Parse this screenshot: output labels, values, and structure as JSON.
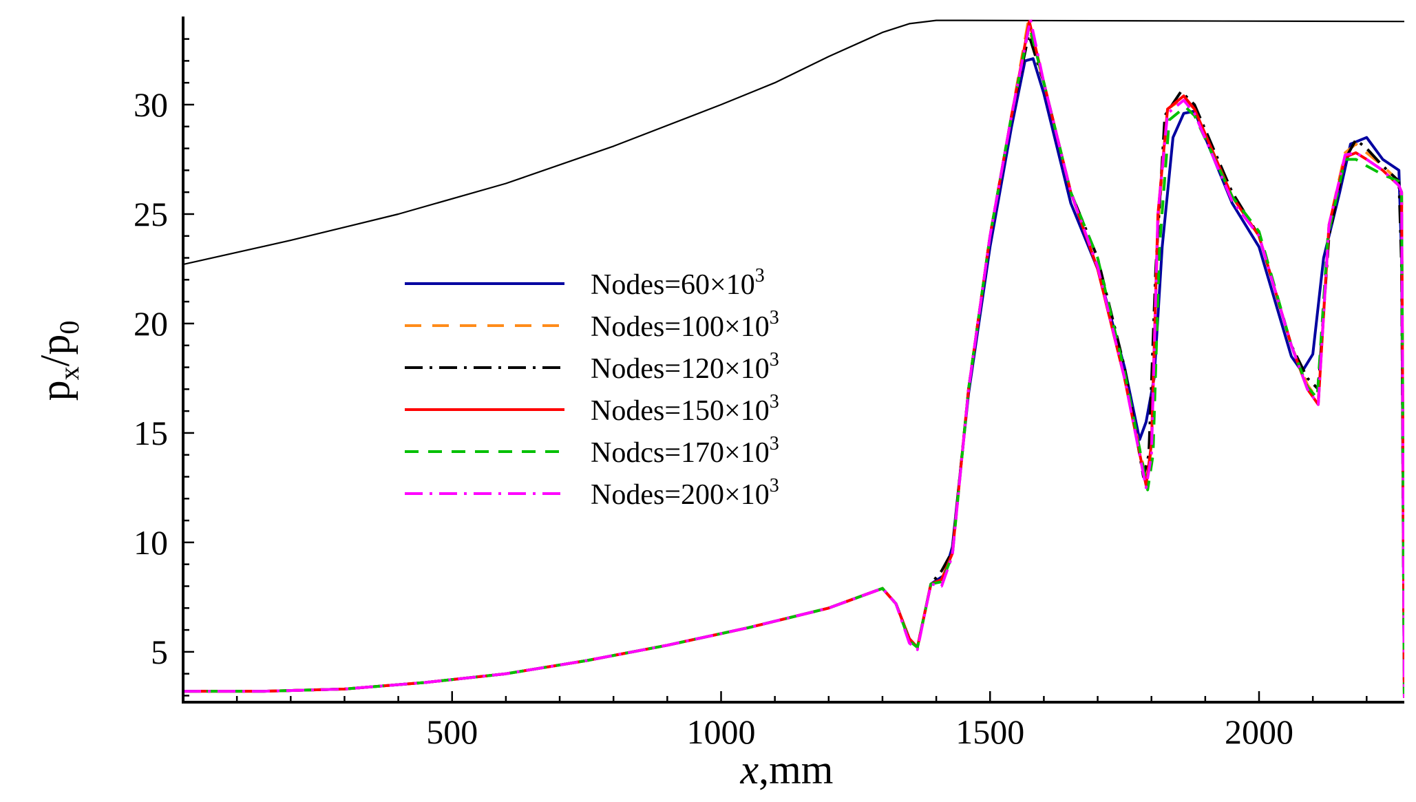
{
  "chart_data": {
    "type": "line",
    "title": "",
    "xlabel": {
      "italic": "x",
      "rest": ",mm"
    },
    "ylabel": {
      "base1": "p",
      "sub1": "x",
      "slash": "/",
      "base2": "p",
      "sub2": "0"
    },
    "xlim": [
      0,
      2270
    ],
    "ylim": [
      2.7,
      33.9
    ],
    "xticks": [
      500,
      1000,
      1500,
      2000
    ],
    "xtick_labels": [
      "500",
      "1000",
      "1500",
      "2000"
    ],
    "yticks": [
      5,
      10,
      15,
      20,
      25,
      30
    ],
    "ytick_labels": [
      "5",
      "10",
      "15",
      "20",
      "25",
      "30"
    ],
    "grid": false,
    "legend_position": "center-left",
    "profile": {
      "name": "contour",
      "color": "#000000",
      "x": [
        0,
        200,
        400,
        600,
        800,
        1000,
        1100,
        1200,
        1300,
        1350,
        1400,
        1420,
        2270
      ],
      "y": [
        22.7,
        23.8,
        25.0,
        26.4,
        28.1,
        30.0,
        31.0,
        32.2,
        33.3,
        33.7,
        33.85,
        33.85,
        33.8
      ]
    },
    "series": [
      {
        "legend": {
          "prefix": "Nodes=",
          "mant": "60",
          "base": "×10",
          "exp": "3"
        },
        "color": "#0000a0",
        "dash": "solid",
        "x": [
          0,
          150,
          300,
          450,
          600,
          750,
          900,
          1050,
          1200,
          1300,
          1325,
          1350,
          1365,
          1390,
          1415,
          1430,
          1460,
          1500,
          1540,
          1565,
          1580,
          1600,
          1650,
          1700,
          1750,
          1778,
          1790,
          1805,
          1820,
          1840,
          1860,
          1880,
          1950,
          2000,
          2060,
          2080,
          2100,
          2120,
          2150,
          2170,
          2200,
          2230,
          2260,
          2265,
          2270
        ],
        "y": [
          3.2,
          3.2,
          3.3,
          3.6,
          4.0,
          4.6,
          5.3,
          6.1,
          7.0,
          7.9,
          7.2,
          5.6,
          5.2,
          8.1,
          8.5,
          9.8,
          16.8,
          23.5,
          29.0,
          32.0,
          32.1,
          30.5,
          25.5,
          22.5,
          18.0,
          14.7,
          15.5,
          17.5,
          23.5,
          28.5,
          29.6,
          29.7,
          25.5,
          23.5,
          18.5,
          17.8,
          18.6,
          23.0,
          26.0,
          28.2,
          28.5,
          27.5,
          27.0,
          23.0,
          2.9
        ]
      },
      {
        "legend": {
          "prefix": "Nodes=",
          "mant": "100",
          "base": "×10",
          "exp": "3"
        },
        "color": "#ff8c1a",
        "dash": "24 16",
        "x": [
          0,
          150,
          300,
          450,
          600,
          750,
          900,
          1050,
          1200,
          1300,
          1325,
          1350,
          1365,
          1390,
          1410,
          1430,
          1460,
          1500,
          1540,
          1570,
          1600,
          1650,
          1700,
          1750,
          1790,
          1800,
          1812,
          1830,
          1860,
          1880,
          1950,
          2000,
          2060,
          2090,
          2110,
          2130,
          2160,
          2180,
          2200,
          2230,
          2260,
          2265,
          2270
        ],
        "y": [
          3.2,
          3.2,
          3.3,
          3.6,
          4.0,
          4.6,
          5.3,
          6.1,
          7.0,
          7.9,
          7.2,
          5.6,
          5.2,
          8.1,
          8.3,
          9.5,
          17.0,
          24.0,
          29.5,
          33.7,
          31.0,
          26.0,
          22.5,
          17.5,
          12.9,
          14.2,
          24.5,
          29.8,
          30.3,
          29.8,
          25.8,
          24.0,
          19.0,
          17.2,
          16.5,
          24.5,
          27.8,
          28.2,
          27.8,
          27.2,
          26.5,
          25.8,
          2.9
        ]
      },
      {
        "legend": {
          "prefix": "Nodes=",
          "mant": "120",
          "base": "×10",
          "exp": "3"
        },
        "color": "#000000",
        "dash": "26 10 4 10",
        "x": [
          0,
          150,
          300,
          450,
          600,
          750,
          900,
          1050,
          1200,
          1300,
          1325,
          1350,
          1365,
          1390,
          1410,
          1430,
          1460,
          1500,
          1540,
          1572,
          1600,
          1650,
          1700,
          1750,
          1785,
          1795,
          1808,
          1825,
          1855,
          1880,
          1950,
          2000,
          2060,
          2090,
          2110,
          2130,
          2160,
          2180,
          2200,
          2230,
          2260,
          2265,
          2270
        ],
        "y": [
          3.2,
          3.2,
          3.3,
          3.6,
          4.0,
          4.6,
          5.3,
          6.1,
          7.0,
          7.9,
          7.2,
          5.6,
          5.2,
          8.1,
          8.7,
          9.6,
          17.0,
          24.0,
          29.5,
          33.2,
          31.0,
          26.0,
          23.0,
          18.0,
          13.0,
          14.0,
          22.5,
          29.5,
          30.6,
          30.0,
          26.0,
          24.0,
          19.0,
          17.5,
          17.0,
          24.0,
          27.5,
          28.4,
          28.0,
          27.2,
          26.5,
          22.5,
          2.9
        ]
      },
      {
        "legend": {
          "prefix": "Nodes=",
          "mant": "150",
          "base": "×10",
          "exp": "3"
        },
        "color": "#ff0000",
        "dash": "solid",
        "x": [
          0,
          150,
          300,
          450,
          600,
          750,
          900,
          1050,
          1200,
          1300,
          1325,
          1350,
          1365,
          1390,
          1410,
          1430,
          1460,
          1500,
          1540,
          1573,
          1600,
          1650,
          1700,
          1750,
          1790,
          1800,
          1812,
          1830,
          1860,
          1880,
          1950,
          2000,
          2060,
          2090,
          2110,
          2130,
          2160,
          2180,
          2200,
          2230,
          2260,
          2265,
          2270
        ],
        "y": [
          3.2,
          3.2,
          3.3,
          3.6,
          4.0,
          4.6,
          5.3,
          6.1,
          7.0,
          7.9,
          7.2,
          5.6,
          5.2,
          8.1,
          8.3,
          9.5,
          17.0,
          24.0,
          29.5,
          33.8,
          31.0,
          26.0,
          22.5,
          17.5,
          12.6,
          14.5,
          25.0,
          29.8,
          30.4,
          29.8,
          25.8,
          24.0,
          19.0,
          17.0,
          16.3,
          24.5,
          27.6,
          27.8,
          27.5,
          27.0,
          26.3,
          26.0,
          2.9
        ]
      },
      {
        "legend": {
          "prefix": "Nodcs=",
          "mant": "170",
          "base": "×10",
          "exp": "3"
        },
        "color": "#00c000",
        "dash": "20 14",
        "x": [
          0,
          150,
          300,
          450,
          600,
          750,
          900,
          1050,
          1200,
          1300,
          1325,
          1350,
          1365,
          1390,
          1410,
          1430,
          1460,
          1500,
          1540,
          1573,
          1600,
          1650,
          1700,
          1750,
          1793,
          1803,
          1815,
          1833,
          1863,
          1880,
          1950,
          2000,
          2060,
          2090,
          2108,
          2128,
          2160,
          2180,
          2200,
          2230,
          2260,
          2265,
          2270
        ],
        "y": [
          3.2,
          3.2,
          3.3,
          3.6,
          4.0,
          4.6,
          5.3,
          6.1,
          7.0,
          7.9,
          7.2,
          5.5,
          5.2,
          8.1,
          8.2,
          9.4,
          17.0,
          24.0,
          29.5,
          33.6,
          31.0,
          26.0,
          23.0,
          17.8,
          12.4,
          14.0,
          23.5,
          29.3,
          29.9,
          29.5,
          25.8,
          24.2,
          19.0,
          17.1,
          16.6,
          24.0,
          27.5,
          27.5,
          27.2,
          26.8,
          26.5,
          26.0,
          2.9
        ]
      },
      {
        "legend": {
          "prefix": "Nodes=",
          "mant": "200",
          "base": "×10",
          "exp": "3"
        },
        "color": "#ff00ff",
        "dash": "26 10 4 10",
        "x": [
          0,
          150,
          300,
          450,
          600,
          750,
          900,
          1050,
          1200,
          1300,
          1325,
          1350,
          1365,
          1390,
          1410,
          1430,
          1460,
          1500,
          1540,
          1575,
          1600,
          1650,
          1700,
          1750,
          1790,
          1800,
          1812,
          1830,
          1860,
          1880,
          1950,
          2000,
          2060,
          2090,
          2110,
          2130,
          2160,
          2180,
          2200,
          2230,
          2260,
          2265,
          2270
        ],
        "y": [
          3.2,
          3.2,
          3.3,
          3.6,
          4.0,
          4.6,
          5.3,
          6.1,
          7.0,
          7.9,
          7.2,
          5.4,
          5.1,
          8.1,
          8.0,
          9.4,
          17.0,
          24.0,
          29.5,
          33.9,
          31.0,
          26.0,
          22.6,
          17.5,
          12.5,
          14.0,
          25.0,
          29.6,
          30.2,
          29.6,
          25.6,
          24.0,
          19.0,
          17.0,
          16.3,
          24.5,
          27.7,
          27.8,
          27.5,
          27.0,
          26.3,
          26.0,
          2.9
        ]
      }
    ]
  }
}
